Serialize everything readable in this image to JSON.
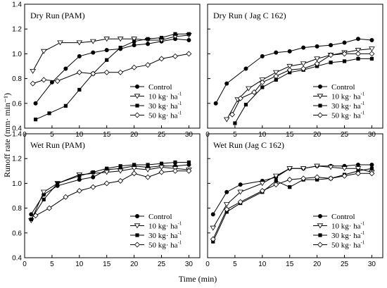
{
  "chart_data": [
    {
      "type": "line",
      "title": "Dry Run (PAM)",
      "xlim": [
        0,
        32
      ],
      "ylim": [
        0.4,
        1.4
      ],
      "xticks": [
        0,
        5,
        10,
        15,
        20,
        25,
        30
      ],
      "yticks": [
        0.4,
        0.6,
        0.8,
        1.0,
        1.2,
        1.4
      ],
      "legend_position": "bottom-right",
      "series": [
        {
          "name": "Control",
          "marker": "filled-circle",
          "x": [
            2,
            5,
            7.5,
            10,
            12.5,
            15,
            17.5,
            20,
            22.5,
            25,
            27.5,
            30
          ],
          "y": [
            0.6,
            0.77,
            0.88,
            0.98,
            1.01,
            1.03,
            1.04,
            1.07,
            1.08,
            1.1,
            1.12,
            1.11
          ]
        },
        {
          "name": "10 kg· ha-1",
          "marker": "open-triangle",
          "x": [
            1.5,
            3.5,
            6.5,
            10,
            12.5,
            15,
            17.5,
            20,
            22.5,
            25,
            27.5,
            30
          ],
          "y": [
            0.86,
            1.02,
            1.09,
            1.09,
            1.1,
            1.12,
            1.12,
            1.12,
            1.11,
            1.11,
            1.14,
            1.15
          ]
        },
        {
          "name": "30 kg· ha-1",
          "marker": "filled-square",
          "x": [
            2,
            4.5,
            7.5,
            10,
            12.5,
            15,
            17.5,
            20,
            22.5,
            25,
            27.5,
            30
          ],
          "y": [
            0.47,
            0.52,
            0.58,
            0.71,
            0.84,
            0.95,
            1.05,
            1.1,
            1.12,
            1.13,
            1.16,
            1.16
          ]
        },
        {
          "name": "50 kg· ha-1",
          "marker": "open-diamond",
          "x": [
            1.5,
            3.5,
            6,
            10,
            12.5,
            15,
            17.5,
            20,
            22.5,
            25,
            27.5,
            30
          ],
          "y": [
            0.76,
            0.79,
            0.78,
            0.85,
            0.84,
            0.85,
            0.85,
            0.89,
            0.91,
            0.96,
            0.98,
            1.0
          ]
        }
      ]
    },
    {
      "type": "line",
      "title": "Dry Run ( Jag C 162)",
      "xlim": [
        0,
        32
      ],
      "ylim": [
        0.4,
        1.4
      ],
      "xticks": [
        0,
        5,
        10,
        15,
        20,
        25,
        30
      ],
      "yticks": [
        0.4,
        0.6,
        0.8,
        1.0,
        1.2,
        1.4
      ],
      "legend_position": "bottom-right",
      "series": [
        {
          "name": "Control",
          "marker": "filled-circle",
          "x": [
            1.5,
            3.5,
            7,
            10,
            12.5,
            15,
            17.5,
            20,
            22.5,
            25,
            27.5,
            30
          ],
          "y": [
            0.6,
            0.76,
            0.88,
            0.98,
            1.01,
            1.02,
            1.05,
            1.06,
            1.07,
            1.09,
            1.12,
            1.11
          ]
        },
        {
          "name": "10 kg· ha-1",
          "marker": "open-triangle",
          "x": [
            3.5,
            5.5,
            7.5,
            10,
            12.5,
            15,
            17.5,
            20,
            22.5,
            25,
            27.5,
            30
          ],
          "y": [
            0.47,
            0.63,
            0.72,
            0.79,
            0.85,
            0.9,
            0.92,
            0.96,
            0.99,
            1.01,
            1.03,
            1.04
          ]
        },
        {
          "name": "30 kg· ha-1",
          "marker": "filled-square",
          "x": [
            5,
            7,
            10,
            12.5,
            15,
            17.5,
            20,
            22.5,
            25,
            27.5,
            30
          ],
          "y": [
            0.44,
            0.59,
            0.73,
            0.79,
            0.85,
            0.87,
            0.9,
            0.93,
            0.94,
            0.96,
            0.96
          ]
        },
        {
          "name": "50 kg· ha-1",
          "marker": "open-diamond",
          "x": [
            4.5,
            6,
            8.5,
            10,
            12.5,
            15,
            17.5,
            20,
            22.5,
            25,
            27.5,
            30
          ],
          "y": [
            0.51,
            0.64,
            0.69,
            0.77,
            0.82,
            0.87,
            0.88,
            0.92,
            0.99,
            1.0,
            1.0,
            1.0
          ]
        }
      ]
    },
    {
      "type": "line",
      "title": "Wet Run (PAM)",
      "xlim": [
        0,
        32
      ],
      "ylim": [
        0.4,
        1.4
      ],
      "xticks": [
        0,
        5,
        10,
        15,
        20,
        25,
        30
      ],
      "yticks": [
        0.4,
        0.6,
        0.8,
        1.0,
        1.2,
        1.4
      ],
      "legend_position": "bottom-right",
      "series": [
        {
          "name": "Control",
          "marker": "filled-circle",
          "x": [
            1.2,
            3.5,
            6,
            10,
            12.5,
            15,
            17.5,
            20,
            22.5,
            25,
            27.5,
            30
          ],
          "y": [
            0.75,
            0.91,
            0.98,
            1.03,
            1.05,
            1.11,
            1.12,
            1.14,
            1.13,
            1.14,
            1.14,
            1.15
          ]
        },
        {
          "name": "10 kg· ha-1",
          "marker": "open-triangle",
          "x": [
            1.2,
            3.5,
            6,
            10,
            12.5,
            15,
            17.5,
            20,
            22.5,
            25,
            27.5,
            30
          ],
          "y": [
            0.7,
            0.93,
            1.0,
            1.07,
            1.08,
            1.09,
            1.1,
            1.12,
            1.11,
            1.13,
            1.12,
            1.11
          ]
        },
        {
          "name": "30 kg· ha-1",
          "marker": "filled-square",
          "x": [
            1.2,
            3.5,
            6,
            10,
            12.5,
            15,
            17.5,
            20,
            22.5,
            25,
            27.5,
            30
          ],
          "y": [
            0.71,
            0.87,
            1.0,
            1.06,
            1.09,
            1.12,
            1.14,
            1.15,
            1.15,
            1.16,
            1.17,
            1.17
          ]
        },
        {
          "name": "50 kg· ha-1",
          "marker": "open-diamond",
          "x": [
            2,
            4.5,
            7.5,
            10,
            12.5,
            15,
            17.5,
            20,
            22.5,
            25,
            27.5,
            30
          ],
          "y": [
            0.74,
            0.8,
            0.89,
            0.94,
            0.97,
            1.0,
            1.02,
            1.08,
            1.05,
            1.09,
            1.1,
            1.1
          ]
        }
      ]
    },
    {
      "type": "line",
      "title": "Wet Run (Jag C 162)",
      "xlim": [
        0,
        32
      ],
      "ylim": [
        0.4,
        1.4
      ],
      "xticks": [
        0,
        5,
        10,
        15,
        20,
        25,
        30
      ],
      "yticks": [
        0.4,
        0.6,
        0.8,
        1.0,
        1.2,
        1.4
      ],
      "legend_position": "bottom-right",
      "series": [
        {
          "name": "Control",
          "marker": "filled-circle",
          "x": [
            1,
            3.5,
            6,
            10,
            12.5,
            15,
            17.5,
            20,
            22.5,
            25,
            27.5,
            30
          ],
          "y": [
            0.75,
            0.93,
            0.99,
            1.02,
            1.05,
            1.12,
            1.12,
            1.14,
            1.14,
            1.14,
            1.15,
            1.15
          ]
        },
        {
          "name": "10 kg· ha-1",
          "marker": "open-triangle",
          "x": [
            1,
            3.5,
            6,
            10,
            12.5,
            15,
            17.5,
            20,
            22.5,
            25,
            27.5,
            30
          ],
          "y": [
            0.64,
            0.83,
            0.93,
            1.0,
            1.06,
            1.12,
            1.12,
            1.14,
            1.13,
            1.12,
            1.12,
            1.09
          ]
        },
        {
          "name": "30 kg· ha-1",
          "marker": "filled-square",
          "x": [
            1,
            3.5,
            6,
            10,
            12.5,
            15,
            17.5,
            20,
            22.5,
            25,
            27.5,
            30
          ],
          "y": [
            0.53,
            0.77,
            0.84,
            0.93,
            1.02,
            0.97,
            1.03,
            1.03,
            1.04,
            1.07,
            1.1,
            1.12
          ]
        },
        {
          "name": "50 kg· ha-1",
          "marker": "open-diamond",
          "x": [
            1,
            3.5,
            6,
            10,
            12.5,
            15,
            17.5,
            20,
            22.5,
            25,
            27.5,
            30
          ],
          "y": [
            0.55,
            0.79,
            0.85,
            0.94,
            0.99,
            1.03,
            1.04,
            1.05,
            1.04,
            1.06,
            1.08,
            1.08
          ]
        }
      ]
    }
  ],
  "figure": {
    "ylabel": "Runoff rate (mm· min⁻¹)",
    "xlabel": "Time (min)"
  }
}
